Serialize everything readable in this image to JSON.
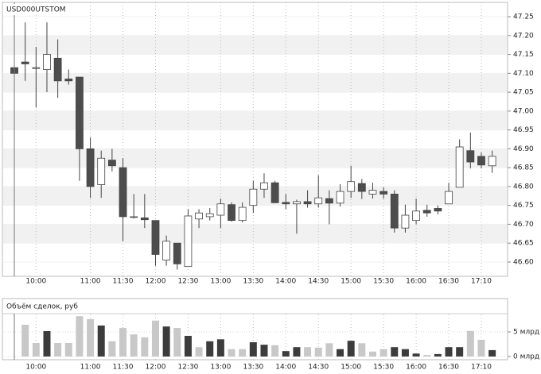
{
  "chart_data": [
    {
      "type": "candlestick",
      "title": "USD000UTSTOM",
      "categories": [
        null,
        null,
        "10:00",
        null,
        null,
        null,
        null,
        "11:00",
        null,
        null,
        "11:30",
        null,
        null,
        "12:00",
        null,
        null,
        "12:30",
        null,
        null,
        "13:00",
        null,
        null,
        "13:30",
        null,
        null,
        "14:00",
        null,
        null,
        "14:30",
        null,
        null,
        "15:00",
        null,
        null,
        "15:30",
        null,
        null,
        "16:00",
        null,
        null,
        "16:30",
        null,
        null,
        "17:10",
        null
      ],
      "open": [
        47.115,
        47.13,
        47.115,
        47.11,
        47.14,
        47.085,
        47.09,
        46.9,
        46.805,
        46.87,
        46.85,
        46.72,
        46.717,
        46.71,
        46.605,
        46.65,
        46.588,
        46.714,
        46.72,
        46.724,
        46.752,
        46.71,
        46.75,
        46.793,
        46.81,
        46.758,
        46.754,
        46.76,
        46.754,
        46.768,
        46.756,
        46.787,
        46.808,
        46.78,
        46.787,
        46.78,
        46.69,
        46.71,
        46.737,
        46.742,
        46.754,
        46.798,
        46.895,
        46.88,
        46.855
      ],
      "high": [
        47.12,
        47.235,
        47.17,
        47.235,
        47.19,
        47.11,
        47.09,
        46.93,
        46.895,
        46.9,
        46.875,
        46.78,
        46.78,
        46.71,
        46.67,
        46.65,
        46.74,
        46.74,
        46.743,
        46.768,
        46.758,
        46.758,
        46.815,
        46.835,
        46.815,
        46.78,
        46.765,
        46.79,
        46.83,
        46.79,
        46.806,
        46.855,
        46.82,
        46.81,
        46.798,
        46.79,
        46.752,
        46.768,
        46.752,
        46.75,
        46.81,
        46.925,
        46.943,
        46.89,
        46.895
      ],
      "low": [
        47.1,
        47.08,
        47.01,
        47.05,
        47.035,
        47.07,
        46.815,
        46.77,
        46.77,
        46.84,
        46.655,
        46.715,
        46.69,
        46.59,
        46.59,
        46.58,
        46.588,
        46.69,
        46.71,
        46.69,
        46.707,
        46.705,
        46.73,
        46.77,
        46.757,
        46.74,
        46.675,
        46.744,
        46.744,
        46.7,
        46.747,
        46.77,
        46.767,
        46.768,
        46.768,
        46.678,
        46.678,
        46.7,
        46.72,
        46.726,
        46.754,
        46.798,
        46.848,
        46.848,
        46.836
      ],
      "close": [
        47.1,
        47.125,
        47.115,
        47.15,
        47.08,
        47.08,
        46.9,
        46.8,
        46.875,
        46.855,
        46.72,
        46.72,
        46.712,
        46.62,
        46.655,
        46.595,
        46.722,
        46.73,
        46.728,
        46.754,
        46.71,
        46.745,
        46.793,
        46.81,
        46.757,
        46.754,
        46.76,
        46.754,
        46.77,
        46.756,
        46.787,
        46.813,
        46.787,
        46.79,
        46.78,
        46.69,
        46.724,
        46.735,
        46.73,
        46.735,
        46.787,
        46.905,
        46.865,
        46.857,
        46.88
      ],
      "up_color": "#ffffff",
      "down_color": "#4d4d4d",
      "ylim": [
        46.562,
        47.288
      ],
      "yticks": [
        {
          "value": 46.6,
          "label": "46.60"
        },
        46.65,
        {
          "value": 46.7,
          "label": "46.70"
        },
        46.75,
        {
          "value": 46.8,
          "label": "46.80"
        },
        46.85,
        {
          "value": 46.9,
          "label": "46.90"
        },
        46.95,
        {
          "value": 47.0,
          "label": "47.00"
        },
        47.05,
        {
          "value": 47.1,
          "label": "47.10"
        },
        47.15,
        {
          "value": 47.2,
          "label": "47.20"
        },
        47.25
      ],
      "grid": true
    },
    {
      "type": "bar",
      "title": "Объём сделок, руб",
      "categories": [
        null,
        "10:00",
        null,
        null,
        null,
        null,
        "11:00",
        null,
        null,
        "11:30",
        null,
        null,
        "12:00",
        null,
        null,
        "12:30",
        null,
        null,
        "13:00",
        null,
        null,
        "13:30",
        null,
        null,
        "14:00",
        null,
        null,
        "14:30",
        null,
        null,
        "15:00",
        null,
        null,
        "15:30",
        null,
        null,
        "16:00",
        null,
        null,
        "16:30",
        null,
        null,
        "17:10",
        null
      ],
      "values": [
        6.45,
        2.74,
        5.16,
        2.74,
        2.74,
        8.2,
        7.6,
        6.3,
        3.1,
        5.8,
        4.5,
        3.9,
        7.3,
        6.1,
        5.8,
        4.2,
        1.9,
        3.1,
        3.5,
        1.5,
        1.5,
        2.9,
        2.4,
        2.3,
        1.1,
        1.9,
        1.9,
        1.8,
        2.7,
        1.5,
        3.2,
        2.7,
        1.0,
        1.5,
        1.9,
        1.5,
        0.6,
        0.3,
        0.5,
        1.9,
        1.9,
        5.2,
        3.4,
        1.3
      ],
      "colors": [
        "#c8c8c8",
        "#c8c8c8",
        "#3c3c3c",
        "#c8c8c8",
        "#c8c8c8",
        "#c8c8c8",
        "#c8c8c8",
        "#3c3c3c",
        "#c8c8c8",
        "#c8c8c8",
        "#c8c8c8",
        "#c8c8c8",
        "#c8c8c8",
        "#3c3c3c",
        "#c8c8c8",
        "#3c3c3c",
        "#c8c8c8",
        "#3c3c3c",
        "#3c3c3c",
        "#c8c8c8",
        "#c8c8c8",
        "#3c3c3c",
        "#3c3c3c",
        "#c8c8c8",
        "#3c3c3c",
        "#3c3c3c",
        "#c8c8c8",
        "#c8c8c8",
        "#c8c8c8",
        "#3c3c3c",
        "#3c3c3c",
        "#c8c8c8",
        "#c8c8c8",
        "#c8c8c8",
        "#3c3c3c",
        "#3c3c3c",
        "#3c3c3c",
        "#c8c8c8",
        "#3c3c3c",
        "#3c3c3c",
        "#3c3c3c",
        "#c8c8c8",
        "#c8c8c8",
        "#3c3c3c"
      ],
      "ylim": [
        -0.65,
        8.55
      ],
      "yticks": [
        {
          "value": 0,
          "label": "0 млрд"
        },
        {
          "value": 5,
          "label": "5 млрд"
        }
      ],
      "grid": true
    }
  ]
}
